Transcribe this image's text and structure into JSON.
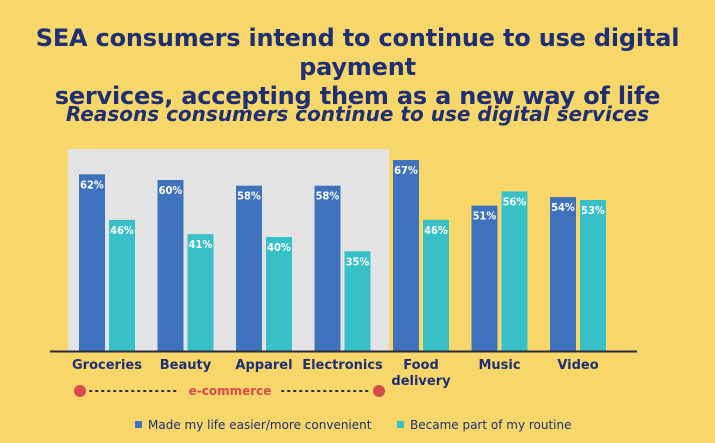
{
  "title_line1": "SEA consumers intend to continue to use digital payment",
  "title_line2": "services, accepting them as a new way of life",
  "subtitle": "Reasons consumers continue to use digital services",
  "colors": {
    "background": "#f7d76a",
    "highlight_box": "#e3e3e3",
    "series1": "#3f72bd",
    "series2": "#38c0c8",
    "text": "#1f2f73",
    "ecommerce": "#d94a4a"
  },
  "ecommerce_label": "e-commerce",
  "chart_data": {
    "type": "bar",
    "title": "Reasons consumers continue to use digital services",
    "categories": [
      [
        "Groceries"
      ],
      [
        "Beauty"
      ],
      [
        "Apparel"
      ],
      [
        "Electronics"
      ],
      [
        "Food",
        "delivery"
      ],
      [
        "Music"
      ],
      [
        "Video"
      ]
    ],
    "series": [
      {
        "name": "Made my life easier/more convenient",
        "values": [
          62,
          60,
          58,
          58,
          67,
          51,
          54
        ]
      },
      {
        "name": "Became part of my routine",
        "values": [
          46,
          41,
          40,
          35,
          46,
          56,
          53
        ]
      }
    ],
    "ylim": [
      0,
      75
    ],
    "legend": "bottom",
    "grid": false,
    "highlight_group": {
      "label": "e-commerce",
      "categories": [
        "Groceries",
        "Beauty",
        "Apparel",
        "Electronics"
      ]
    }
  }
}
